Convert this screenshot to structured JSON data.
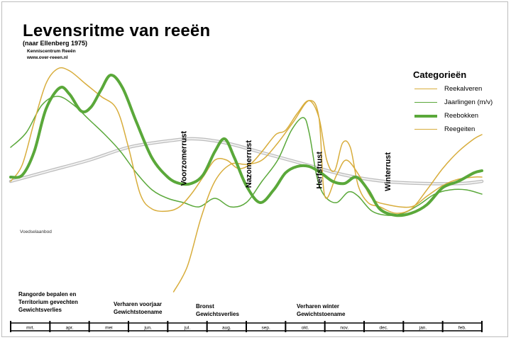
{
  "header": {
    "title": "Levensritme van reeën",
    "subtitle": "(naar Ellenberg 1975)",
    "credit_line1": "Kenniscentrum Reeën",
    "credit_line2": "www.over-reeen.nl"
  },
  "legend": {
    "title": "Categorieën"
  },
  "chart_data": {
    "type": "line",
    "title": "Levensritme van reeën",
    "subtitle": "(naar Ellenberg 1975)",
    "categories": [
      "mrt.",
      "apr.",
      "mei",
      "jun.",
      "jul.",
      "aug.",
      "sep.",
      "okt.",
      "nov.",
      "dec.",
      "jan.",
      "feb."
    ],
    "x_range": [
      0,
      12
    ],
    "y_range": [
      0,
      100
    ],
    "grid": false,
    "y_axis_visible": false,
    "legend_position": "top-right",
    "series": [
      {
        "name": "Reekalveren",
        "color": "#d8ad3c",
        "width": 1.5,
        "points": [
          [
            4.15,
            0
          ],
          [
            4.5,
            12
          ],
          [
            4.85,
            35
          ],
          [
            5.2,
            52
          ],
          [
            5.6,
            60
          ],
          [
            6.0,
            60
          ],
          [
            6.4,
            62
          ],
          [
            6.8,
            70
          ],
          [
            7.2,
            80
          ],
          [
            7.6,
            90
          ],
          [
            7.85,
            82
          ],
          [
            8.0,
            45
          ],
          [
            8.3,
            55
          ],
          [
            8.55,
            62
          ],
          [
            8.9,
            54
          ],
          [
            9.2,
            44
          ],
          [
            9.6,
            41
          ],
          [
            10.2,
            40
          ],
          [
            10.6,
            45
          ],
          [
            11.0,
            50
          ],
          [
            11.4,
            53
          ],
          [
            11.8,
            54
          ],
          [
            12.0,
            54
          ]
        ]
      },
      {
        "name": "Jaarlingen (m/v)",
        "color": "#5aa83a",
        "width": 1.5,
        "points": [
          [
            0.0,
            68
          ],
          [
            0.4,
            75
          ],
          [
            0.8,
            88
          ],
          [
            1.2,
            92
          ],
          [
            1.6,
            88
          ],
          [
            2.0,
            81
          ],
          [
            2.4,
            74
          ],
          [
            2.8,
            66
          ],
          [
            3.2,
            56
          ],
          [
            3.6,
            48
          ],
          [
            4.0,
            44
          ],
          [
            4.4,
            42
          ],
          [
            4.8,
            40
          ],
          [
            5.2,
            44
          ],
          [
            5.6,
            40
          ],
          [
            6.0,
            42
          ],
          [
            6.4,
            52
          ],
          [
            6.8,
            62
          ],
          [
            7.15,
            76
          ],
          [
            7.45,
            82
          ],
          [
            7.6,
            75
          ],
          [
            7.8,
            54
          ],
          [
            8.0,
            45
          ],
          [
            8.3,
            42
          ],
          [
            8.6,
            47
          ],
          [
            8.85,
            45
          ],
          [
            9.2,
            38
          ],
          [
            9.6,
            36
          ],
          [
            10.0,
            37
          ],
          [
            10.4,
            41
          ],
          [
            10.8,
            46
          ],
          [
            11.2,
            48
          ],
          [
            11.6,
            48
          ],
          [
            12.0,
            46
          ]
        ]
      },
      {
        "name": "Reebokken",
        "color": "#5aa83a",
        "width": 4,
        "points": [
          [
            0.0,
            54
          ],
          [
            0.3,
            55
          ],
          [
            0.6,
            66
          ],
          [
            0.9,
            86
          ],
          [
            1.25,
            96
          ],
          [
            1.5,
            93
          ],
          [
            1.8,
            85
          ],
          [
            2.05,
            87
          ],
          [
            2.3,
            95
          ],
          [
            2.55,
            102
          ],
          [
            2.85,
            96
          ],
          [
            3.2,
            80
          ],
          [
            3.6,
            63
          ],
          [
            4.0,
            54
          ],
          [
            4.3,
            51
          ],
          [
            4.6,
            51
          ],
          [
            4.9,
            55
          ],
          [
            5.2,
            66
          ],
          [
            5.45,
            72
          ],
          [
            5.7,
            63
          ],
          [
            6.0,
            50
          ],
          [
            6.35,
            42
          ],
          [
            6.7,
            48
          ],
          [
            7.0,
            56
          ],
          [
            7.3,
            59
          ],
          [
            7.6,
            59
          ],
          [
            7.9,
            56
          ],
          [
            8.2,
            52
          ],
          [
            8.5,
            51
          ],
          [
            8.8,
            54
          ],
          [
            9.1,
            48
          ],
          [
            9.4,
            39
          ],
          [
            9.8,
            36
          ],
          [
            10.2,
            37
          ],
          [
            10.6,
            41
          ],
          [
            11.0,
            49
          ],
          [
            11.4,
            52
          ],
          [
            11.8,
            56
          ],
          [
            12.0,
            57
          ]
        ]
      },
      {
        "name": "Reegeiten",
        "color": "#d8ad3c",
        "width": 1.5,
        "points": [
          [
            0.0,
            52
          ],
          [
            0.3,
            60
          ],
          [
            0.6,
            80
          ],
          [
            0.9,
            98
          ],
          [
            1.2,
            105
          ],
          [
            1.5,
            104
          ],
          [
            1.9,
            98
          ],
          [
            2.3,
            92
          ],
          [
            2.7,
            86
          ],
          [
            3.0,
            68
          ],
          [
            3.3,
            46
          ],
          [
            3.6,
            39
          ],
          [
            4.0,
            38
          ],
          [
            4.3,
            40
          ],
          [
            4.6,
            46
          ],
          [
            4.9,
            54
          ],
          [
            5.2,
            62
          ],
          [
            5.5,
            62
          ],
          [
            5.8,
            58
          ],
          [
            6.1,
            60
          ],
          [
            6.4,
            66
          ],
          [
            6.75,
            74
          ],
          [
            7.0,
            76
          ],
          [
            7.3,
            84
          ],
          [
            7.6,
            90
          ],
          [
            7.85,
            82
          ],
          [
            8.05,
            62
          ],
          [
            8.25,
            57
          ],
          [
            8.45,
            70
          ],
          [
            8.65,
            68
          ],
          [
            8.85,
            50
          ],
          [
            9.1,
            42
          ],
          [
            9.4,
            40
          ],
          [
            9.8,
            37
          ],
          [
            10.2,
            39
          ],
          [
            10.6,
            48
          ],
          [
            11.0,
            58
          ],
          [
            11.4,
            66
          ],
          [
            11.8,
            72
          ],
          [
            12.0,
            74
          ]
        ]
      }
    ],
    "food_supply": {
      "label": "Voedselaanbod",
      "color": "#c9c9c9",
      "points": [
        [
          0.0,
          52
        ],
        [
          1.0,
          57
        ],
        [
          2.0,
          62
        ],
        [
          3.0,
          68
        ],
        [
          4.0,
          71
        ],
        [
          4.7,
          72
        ],
        [
          5.5,
          70
        ],
        [
          6.5,
          65
        ],
        [
          7.5,
          60
        ],
        [
          8.5,
          55
        ],
        [
          9.5,
          52
        ],
        [
          10.5,
          51
        ],
        [
          11.5,
          51
        ],
        [
          12.0,
          52
        ]
      ]
    },
    "phase_labels": [
      "Voorzomerrust",
      "Nazomerrust",
      "Herfstrust",
      "Winterrust"
    ],
    "annotations": [
      [
        "Rangorde bepalen en",
        "Territorium gevechten",
        "Gewichtsverlies"
      ],
      [
        "Verharen voorjaar",
        "Gewichtstoename"
      ],
      [
        "Bronst",
        "Gewichtsverlies"
      ],
      [
        "Verharen winter",
        "Gewichtstoename"
      ]
    ]
  }
}
